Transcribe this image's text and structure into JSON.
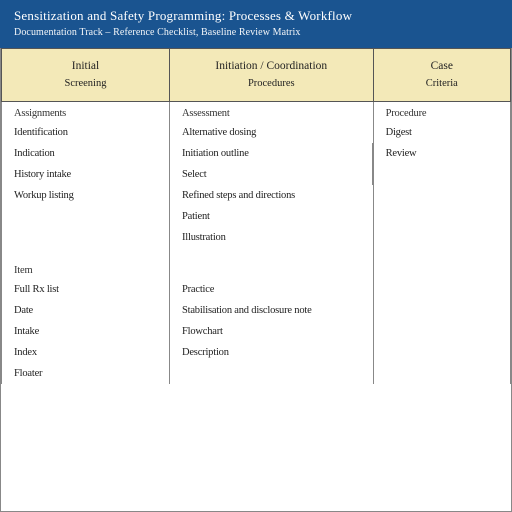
{
  "colors": {
    "header_band": "#1a5490",
    "header_text": "#ffffff",
    "th_bg": "#f3e9b8",
    "border": "#888888",
    "text": "#222222"
  },
  "header": {
    "title": "Sensitization and Safety Programming: Processes & Workflow",
    "subtitle": "Documentation Track – Reference Checklist, Baseline Review Matrix"
  },
  "table": {
    "columns": [
      {
        "top": "Initial",
        "bottom": "Screening"
      },
      {
        "top": "Initiation / Coordination",
        "bottom": "Procedures"
      },
      {
        "top": "Case",
        "bottom": "Criteria"
      }
    ],
    "column_widths_pct": [
      33,
      40,
      27
    ],
    "sections": [
      {
        "label_col1": "Assignments",
        "label_col2": "Assessment",
        "label_col3": "Procedure",
        "rows": [
          {
            "c1": "Identification",
            "c2": "Alternative dosing",
            "c3": "Digest"
          },
          {
            "c1": "Indication",
            "c2": "Initiation outline",
            "c3": "Review"
          },
          {
            "c1": "History intake",
            "c2": "Select",
            "c3": ""
          },
          {
            "c1": "Workup listing",
            "c2": "Refined steps and directions",
            "c3": ""
          },
          {
            "c1": "",
            "c2": "Patient",
            "c3": ""
          },
          {
            "c1": "",
            "c2": "Illustration",
            "c3": ""
          }
        ]
      },
      {
        "label_col1": "Item",
        "label_col2": "",
        "label_col3": "",
        "rows": [
          {
            "c1": "Full Rx list",
            "c2": "Practice",
            "c3": ""
          },
          {
            "c1": "Date",
            "c2": "Stabilisation and disclosure note",
            "c3": ""
          },
          {
            "c1": "Intake",
            "c2": "Flowchart",
            "c3": ""
          },
          {
            "c1": "Index",
            "c2": "Description",
            "c3": ""
          },
          {
            "c1": "Floater",
            "c2": "",
            "c3": ""
          }
        ]
      }
    ]
  }
}
